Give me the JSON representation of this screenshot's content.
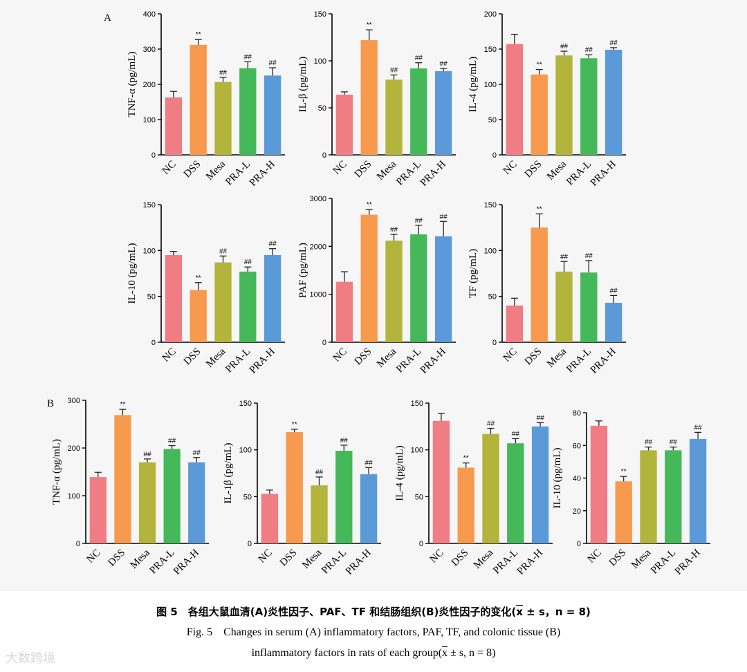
{
  "panel_labels": {
    "a": "A",
    "b": "B"
  },
  "colors": {
    "NC": "#f07c84",
    "DSS": "#f79a4e",
    "Mesa": "#b3b43c",
    "PRA-L": "#45b85a",
    "PRA-H": "#5b9ad8"
  },
  "chart_data": [
    {
      "type": "bar",
      "id": "A1",
      "ylabel": "TNF-α (pg/mL)",
      "ylim": [
        0,
        400
      ],
      "yticks": [
        0,
        100,
        200,
        300,
        400
      ],
      "categories": [
        "NC",
        "DSS",
        "Mesa",
        "PRA-L",
        "PRA-H"
      ],
      "values": [
        163,
        312,
        207,
        246,
        225
      ],
      "errors": [
        17,
        15,
        13,
        18,
        22
      ],
      "annotations": [
        "",
        "**",
        "##",
        "##",
        "##"
      ]
    },
    {
      "type": "bar",
      "id": "A2",
      "ylabel": "IL-β (pg/mL)",
      "ylim": [
        0,
        150
      ],
      "yticks": [
        0,
        50,
        100,
        150
      ],
      "categories": [
        "NC",
        "DSS",
        "Mesa",
        "PRA-L",
        "PRA-H"
      ],
      "values": [
        64,
        122,
        80,
        92,
        89
      ],
      "errors": [
        3,
        11,
        5,
        6,
        3
      ],
      "annotations": [
        "",
        "**",
        "##",
        "##",
        "##"
      ]
    },
    {
      "type": "bar",
      "id": "A3",
      "ylabel": "IL-4 (pg/mL)",
      "ylim": [
        0,
        200
      ],
      "yticks": [
        0,
        50,
        100,
        150,
        200
      ],
      "categories": [
        "NC",
        "DSS",
        "Mesa",
        "PRA-L",
        "PRA-H"
      ],
      "values": [
        157,
        114,
        141,
        137,
        149
      ],
      "errors": [
        14,
        7,
        6,
        5,
        3
      ],
      "annotations": [
        "",
        "**",
        "##",
        "##",
        "##"
      ]
    },
    {
      "type": "bar",
      "id": "A4",
      "ylabel": "IL-10 (pg/mL)",
      "ylim": [
        0,
        150
      ],
      "yticks": [
        0,
        50,
        100,
        150
      ],
      "categories": [
        "NC",
        "DSS",
        "Mesa",
        "PRA-L",
        "PRA-H"
      ],
      "values": [
        95,
        57,
        87,
        77,
        95
      ],
      "errors": [
        4,
        8,
        7,
        5,
        7
      ],
      "annotations": [
        "",
        "**",
        "##",
        "##",
        "##"
      ]
    },
    {
      "type": "bar",
      "id": "A5",
      "ylabel": "PAF (pg/mL)",
      "ylim": [
        0,
        3000
      ],
      "yticks": [
        0,
        1000,
        2000,
        3000
      ],
      "categories": [
        "NC",
        "DSS",
        "Mesa",
        "PRA-L",
        "PRA-H"
      ],
      "values": [
        1260,
        2660,
        2120,
        2250,
        2210
      ],
      "errors": [
        210,
        110,
        130,
        190,
        310
      ],
      "annotations": [
        "",
        "**",
        "##",
        "##",
        "##"
      ]
    },
    {
      "type": "bar",
      "id": "A6",
      "ylabel": "TF (pg/mL)",
      "ylim": [
        0,
        150
      ],
      "yticks": [
        0,
        50,
        100,
        150
      ],
      "categories": [
        "NC",
        "DSS",
        "Mesa",
        "PRA-L",
        "PRA-H"
      ],
      "values": [
        40,
        125,
        77,
        76,
        43
      ],
      "errors": [
        8,
        15,
        11,
        13,
        8
      ],
      "annotations": [
        "",
        "**",
        "##",
        "##",
        "##"
      ]
    },
    {
      "type": "bar",
      "id": "B1",
      "ylabel": "TNF-α (pg/mL)",
      "ylim": [
        0,
        300
      ],
      "yticks": [
        0,
        100,
        200,
        300
      ],
      "categories": [
        "NC",
        "DSS",
        "Mesa",
        "PRA-L",
        "PRA-H"
      ],
      "values": [
        139,
        269,
        170,
        198,
        170
      ],
      "errors": [
        10,
        12,
        7,
        7,
        10
      ],
      "annotations": [
        "",
        "**",
        "##",
        "##",
        "##"
      ]
    },
    {
      "type": "bar",
      "id": "B2",
      "ylabel": "IL-1β (pg/mL)",
      "ylim": [
        0,
        150
      ],
      "yticks": [
        0,
        50,
        100,
        150
      ],
      "categories": [
        "NC",
        "DSS",
        "Mesa",
        "PRA-L",
        "PRA-H"
      ],
      "values": [
        53,
        119,
        62,
        99,
        74
      ],
      "errors": [
        4,
        3,
        9,
        6,
        7
      ],
      "annotations": [
        "",
        "**",
        "##",
        "##",
        "##"
      ]
    },
    {
      "type": "bar",
      "id": "B3",
      "ylabel": "IL-4 (pg/mL)",
      "ylim": [
        0,
        150
      ],
      "yticks": [
        0,
        50,
        100,
        150
      ],
      "categories": [
        "NC",
        "DSS",
        "Mesa",
        "PRA-L",
        "PRA-H"
      ],
      "values": [
        131,
        81,
        117,
        107,
        125
      ],
      "errors": [
        8,
        5,
        6,
        5,
        4
      ],
      "annotations": [
        "",
        "**",
        "##",
        "##",
        "##"
      ]
    },
    {
      "type": "bar",
      "id": "B4",
      "ylabel": "IL-10 (pg/mL)",
      "ylim": [
        0,
        80
      ],
      "yticks": [
        0,
        20,
        40,
        60,
        80
      ],
      "categories": [
        "NC",
        "DSS",
        "Mesa",
        "PRA-L",
        "PRA-H"
      ],
      "values": [
        72,
        38,
        57,
        57,
        64
      ],
      "errors": [
        3,
        3,
        2,
        2,
        4
      ],
      "annotations": [
        "",
        "**",
        "##",
        "##",
        "##"
      ]
    }
  ],
  "caption": {
    "zh_pre": "图 5　各组大鼠血清(A)炎性因子、PAF、TF 和结肠组织(B)炎性因子的变化(",
    "zh_x": "x",
    "zh_post": " ± s，n = 8)",
    "en_line1": "Fig. 5　Changes in serum (A) inflammatory factors, PAF, TF, and colonic tissue (B)",
    "en_line2_pre": "inflammatory factors in rats of each group(",
    "en_x": "x",
    "en_line2_post": " ± s, n = 8)"
  },
  "watermark": "大数跨境"
}
